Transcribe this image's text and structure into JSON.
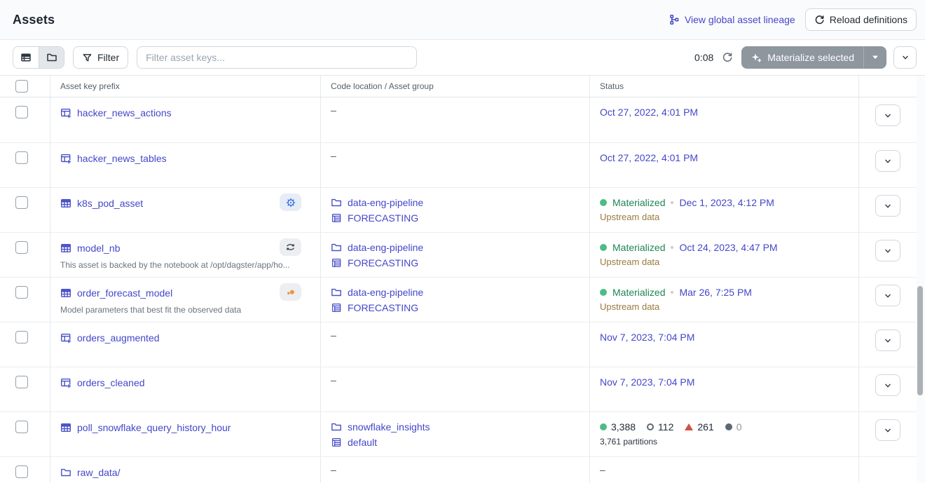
{
  "page": {
    "title": "Assets"
  },
  "header": {
    "lineage_link": "View global asset lineage",
    "reload_button": "Reload definitions"
  },
  "toolbar": {
    "filter_button": "Filter",
    "search_placeholder": "Filter asset keys...",
    "refresh_countdown": "0:08",
    "materialize_button": "Materialize selected"
  },
  "icons": {
    "view_toggles": [
      "table-view-icon",
      "folder-view-icon"
    ],
    "filter": "funnel-icon",
    "lineage": "lineage-icon",
    "reload": "refresh-icon",
    "materialize": "sparkle-icon",
    "expand": "chevron-down-icon"
  },
  "colors": {
    "link": "#4347c9",
    "materialized_green": "#1f8555",
    "materialized_dot": "#4cbd85",
    "upstream_note": "#997a3d",
    "failed_red": "#cf5246",
    "kubernetes_blue": "#326ce5",
    "jupyter_orange": "#ee9440",
    "disabled_button": "#8e969e"
  },
  "table": {
    "dash": "–",
    "columns": [
      "Asset key prefix",
      "Code location / Asset group",
      "Status"
    ],
    "rows": [
      {
        "key": "hacker_news_actions",
        "icon": "table-plus-icon",
        "badge": null,
        "description": null,
        "location": null,
        "expander": true,
        "status": {
          "kind": "date",
          "date": "Oct 27, 2022, 4:01 PM"
        }
      },
      {
        "key": "hacker_news_tables",
        "icon": "table-plus-icon",
        "badge": null,
        "description": null,
        "location": null,
        "expander": true,
        "status": {
          "kind": "date",
          "date": "Oct 27, 2022, 4:01 PM"
        }
      },
      {
        "key": "k8s_pod_asset",
        "icon": "table-icon",
        "badge": "kubernetes-icon",
        "description": null,
        "location": {
          "name": "data-eng-pipeline",
          "group": "FORECASTING"
        },
        "expander": true,
        "status": {
          "kind": "materialized",
          "label": "Materialized",
          "date": "Dec 1, 2023, 4:12 PM",
          "note": "Upstream data"
        }
      },
      {
        "key": "model_nb",
        "icon": "table-icon",
        "badge": "noteable-icon",
        "description": "This asset is backed by the notebook at /opt/dagster/app/ho...",
        "location": {
          "name": "data-eng-pipeline",
          "group": "FORECASTING"
        },
        "expander": true,
        "status": {
          "kind": "materialized",
          "label": "Materialized",
          "date": "Oct 24, 2023, 4:47 PM",
          "note": "Upstream data"
        }
      },
      {
        "key": "order_forecast_model",
        "icon": "table-icon",
        "badge": "jupyter-icon",
        "description": "Model parameters that best fit the observed data",
        "location": {
          "name": "data-eng-pipeline",
          "group": "FORECASTING"
        },
        "expander": true,
        "status": {
          "kind": "materialized",
          "label": "Materialized",
          "date": "Mar 26, 7:25 PM",
          "note": "Upstream data"
        }
      },
      {
        "key": "orders_augmented",
        "icon": "table-plus-icon",
        "badge": null,
        "description": null,
        "location": null,
        "expander": true,
        "status": {
          "kind": "date",
          "date": "Nov 7, 2023, 7:04 PM"
        }
      },
      {
        "key": "orders_cleaned",
        "icon": "table-plus-icon",
        "badge": null,
        "description": null,
        "location": null,
        "expander": true,
        "status": {
          "kind": "date",
          "date": "Nov 7, 2023, 7:04 PM"
        }
      },
      {
        "key": "poll_snowflake_query_history_hour",
        "icon": "table-icon",
        "badge": null,
        "description": null,
        "location": {
          "name": "snowflake_insights",
          "group": "default"
        },
        "expander": true,
        "status": {
          "kind": "counts",
          "note": "3,761 partitions",
          "counts": [
            {
              "marker": "green-dot",
              "value": "3,388",
              "muted": false
            },
            {
              "marker": "hollow-circle",
              "value": "112",
              "muted": false
            },
            {
              "marker": "red-triangle",
              "value": "261",
              "muted": false
            },
            {
              "marker": "gray-dot",
              "value": "0",
              "muted": true
            }
          ]
        }
      },
      {
        "key": "raw_data/",
        "icon": "folder-icon",
        "badge": null,
        "description": null,
        "location": null,
        "expander": false,
        "status": {
          "kind": "empty"
        }
      }
    ]
  }
}
